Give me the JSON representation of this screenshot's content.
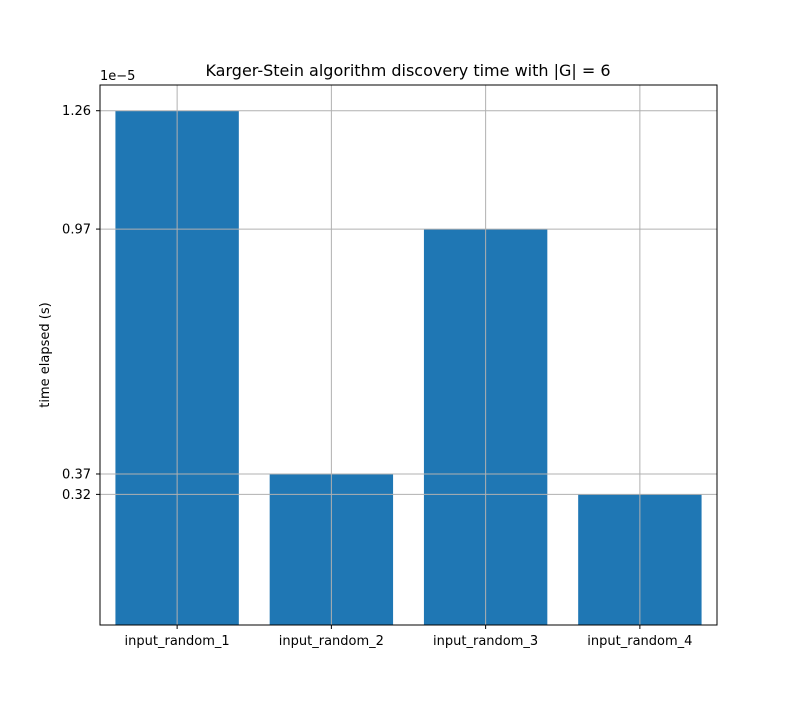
{
  "chart_data": {
    "type": "bar",
    "title": "Karger-Stein algorithm discovery time with |G| = 6",
    "xlabel": "",
    "ylabel": "time elapsed (s)",
    "y_offset_text": "1e−5",
    "categories": [
      "input_random_1",
      "input_random_2",
      "input_random_3",
      "input_random_4"
    ],
    "values": [
      1.26e-05,
      3.7e-06,
      9.7e-06,
      3.2e-06
    ],
    "yticks": [
      3.2e-06,
      3.7e-06,
      9.7e-06,
      1.26e-05
    ],
    "ytick_labels": [
      "0.32",
      "0.37",
      "0.97",
      "1.26"
    ],
    "ylim": [
      0,
      1.323e-05
    ],
    "grid": true,
    "bar_color": "#1f77b4",
    "grid_color": "#b0b0b0"
  }
}
